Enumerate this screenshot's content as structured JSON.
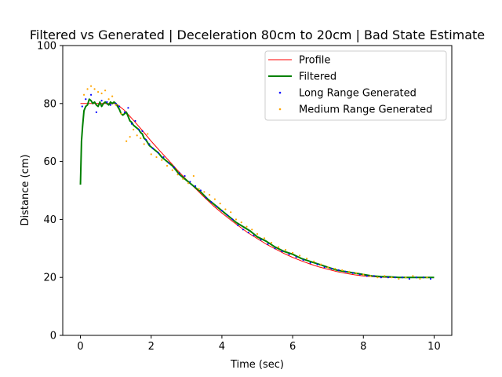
{
  "chart_data": {
    "type": "line",
    "title": "Filtered vs Generated | Deceleration 80cm to 20cm | Bad State Estimate",
    "xlabel": "Time (sec)",
    "ylabel": "Distance (cm)",
    "xlim": [
      -0.5,
      10.5
    ],
    "ylim": [
      0,
      100
    ],
    "xticks": [
      "0",
      "2",
      "4",
      "6",
      "8",
      "10"
    ],
    "yticks": [
      "0",
      "20",
      "40",
      "60",
      "80",
      "100"
    ],
    "grid": false,
    "legend_position": "top-right",
    "series": [
      {
        "name": "Profile",
        "kind": "line",
        "color": "#ff0000",
        "x": [
          0,
          1.0,
          1.25,
          1.5,
          1.75,
          2.0,
          2.25,
          2.5,
          2.75,
          3.0,
          3.25,
          3.5,
          3.75,
          4.0,
          4.25,
          4.5,
          4.75,
          5.0,
          5.25,
          5.5,
          5.75,
          6.0,
          6.25,
          6.5,
          6.75,
          7.0,
          7.25,
          7.5,
          7.75,
          8.0,
          8.25,
          8.5,
          8.75,
          9.0,
          9.25,
          9.5,
          9.75,
          10.0
        ],
        "y": [
          80.0,
          80.0,
          77.6,
          74.2,
          70.7,
          67.0,
          63.6,
          60.3,
          56.9,
          53.7,
          50.7,
          47.7,
          44.8,
          42.2,
          39.8,
          37.5,
          35.3,
          33.4,
          31.5,
          29.9,
          28.3,
          26.9,
          25.7,
          24.6,
          23.6,
          22.8,
          22.0,
          21.4,
          20.9,
          20.5,
          20.3,
          20.1,
          20.0,
          20.0,
          20.0,
          20.0,
          20.0,
          20.0
        ]
      },
      {
        "name": "Filtered",
        "kind": "line",
        "color": "#008000",
        "x": [
          0,
          0.03,
          0.06,
          0.1,
          0.15,
          0.2,
          0.25,
          0.3,
          0.35,
          0.4,
          0.45,
          0.5,
          0.55,
          0.6,
          0.65,
          0.7,
          0.75,
          0.8,
          0.85,
          0.9,
          0.95,
          1.0,
          1.05,
          1.1,
          1.15,
          1.2,
          1.25,
          1.3,
          1.35,
          1.4,
          1.45,
          1.5,
          1.55,
          1.6,
          1.65,
          1.7,
          1.75,
          1.8,
          1.85,
          1.9,
          1.95,
          2.0,
          2.1,
          2.2,
          2.3,
          2.4,
          2.5,
          2.6,
          2.7,
          2.8,
          2.9,
          3.0,
          3.2,
          3.4,
          3.6,
          3.8,
          4.0,
          4.2,
          4.4,
          4.6,
          4.8,
          5.0,
          5.25,
          5.5,
          5.75,
          6.0,
          6.25,
          6.5,
          6.75,
          7.0,
          7.25,
          7.5,
          7.75,
          8.0,
          8.25,
          8.5,
          8.75,
          9.0,
          9.25,
          9.5,
          9.75,
          10.0
        ],
        "y": [
          52.0,
          67.0,
          72.0,
          77.5,
          79.0,
          79.5,
          81.5,
          81.0,
          80.0,
          80.5,
          79.5,
          79.0,
          80.5,
          79.0,
          80.0,
          80.5,
          80.0,
          79.5,
          80.5,
          80.0,
          80.5,
          80.0,
          79.0,
          78.0,
          76.5,
          76.0,
          76.5,
          77.0,
          75.5,
          74.0,
          73.5,
          72.5,
          72.0,
          71.5,
          71.0,
          70.0,
          69.5,
          68.0,
          67.5,
          66.5,
          65.5,
          65.0,
          64.0,
          63.0,
          61.5,
          60.5,
          59.5,
          58.5,
          57.0,
          55.5,
          54.5,
          53.5,
          51.5,
          49.5,
          47.0,
          45.0,
          43.0,
          41.0,
          39.0,
          37.5,
          36.0,
          34.0,
          32.5,
          30.5,
          29.0,
          28.0,
          26.5,
          25.5,
          24.5,
          23.5,
          22.5,
          22.0,
          21.5,
          21.0,
          20.5,
          20.3,
          20.2,
          20.0,
          20.0,
          20.0,
          20.0,
          20.0
        ]
      },
      {
        "name": "Long Range Generated",
        "kind": "scatter",
        "color": "#0000ff",
        "x": [
          0.05,
          0.15,
          0.3,
          0.45,
          0.6,
          0.75,
          0.85,
          1.0,
          1.1,
          1.25,
          1.35,
          1.45,
          1.55,
          1.65,
          1.75,
          1.85,
          1.95,
          2.05,
          2.2,
          2.35,
          2.5,
          2.65,
          2.8,
          2.95,
          3.1,
          3.25,
          3.4,
          3.55,
          3.7,
          3.85,
          4.0,
          4.15,
          4.3,
          4.45,
          4.6,
          4.75,
          4.9,
          5.1,
          5.3,
          5.5,
          5.7,
          5.9,
          6.1,
          6.3,
          6.5,
          6.7,
          6.9,
          7.1,
          7.3,
          7.5,
          7.7,
          7.9,
          8.1,
          8.3,
          8.5,
          8.7,
          8.9,
          9.1,
          9.3,
          9.5,
          9.7,
          9.9
        ],
        "y": [
          79.0,
          81.5,
          83.0,
          77.0,
          81.0,
          80.5,
          79.5,
          80.0,
          79.0,
          77.0,
          78.5,
          73.0,
          74.0,
          71.0,
          70.5,
          67.5,
          66.0,
          64.5,
          63.0,
          61.5,
          59.5,
          58.0,
          56.0,
          55.0,
          53.0,
          51.5,
          50.0,
          47.5,
          46.0,
          44.5,
          43.0,
          41.5,
          40.0,
          38.0,
          36.5,
          35.5,
          34.5,
          33.0,
          31.5,
          30.0,
          29.0,
          28.0,
          27.0,
          26.0,
          25.0,
          24.5,
          23.5,
          23.0,
          22.5,
          22.0,
          21.5,
          21.0,
          20.5,
          20.5,
          20.0,
          20.0,
          20.0,
          20.0,
          19.5,
          20.0,
          20.0,
          19.5
        ]
      },
      {
        "name": "Medium Range Generated",
        "kind": "scatter",
        "color": "#ffa500",
        "x": [
          0.1,
          0.2,
          0.3,
          0.4,
          0.5,
          0.6,
          0.7,
          0.8,
          0.9,
          1.0,
          1.15,
          1.3,
          1.4,
          1.5,
          1.6,
          1.7,
          1.8,
          1.9,
          2.0,
          2.15,
          2.3,
          2.45,
          2.6,
          2.75,
          2.9,
          3.05,
          3.2,
          3.35,
          3.5,
          3.65,
          3.8,
          3.95,
          4.1,
          4.25,
          4.4,
          4.55,
          4.7,
          4.85,
          5.0,
          5.2,
          5.4,
          5.6,
          5.8,
          6.0,
          6.2,
          6.4,
          6.6,
          6.8,
          7.0,
          7.2,
          7.4,
          7.6,
          7.8,
          8.0,
          8.2,
          8.4,
          8.6,
          8.8,
          9.0,
          9.2,
          9.4,
          9.6,
          9.8
        ],
        "y": [
          83.0,
          85.0,
          86.0,
          85.0,
          84.0,
          83.5,
          84.5,
          81.5,
          82.5,
          79.5,
          76.5,
          67.0,
          68.5,
          71.0,
          69.0,
          68.0,
          66.0,
          69.5,
          62.5,
          61.5,
          60.5,
          58.5,
          57.0,
          55.5,
          54.0,
          52.5,
          55.0,
          50.5,
          49.5,
          48.5,
          47.0,
          45.5,
          43.5,
          42.5,
          40.0,
          39.0,
          37.5,
          36.5,
          35.0,
          33.5,
          32.0,
          30.5,
          29.5,
          28.5,
          27.5,
          26.5,
          25.5,
          24.5,
          23.5,
          23.0,
          22.5,
          22.0,
          21.5,
          21.0,
          20.5,
          20.0,
          20.5,
          20.0,
          19.5,
          20.0,
          20.5,
          19.5,
          20.0
        ]
      }
    ]
  }
}
